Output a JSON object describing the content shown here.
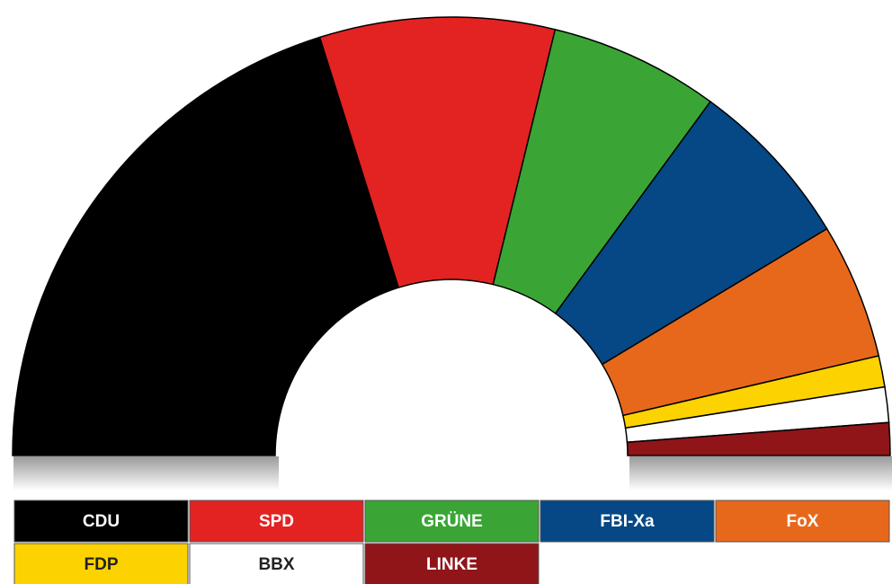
{
  "chart_data": {
    "type": "pie",
    "series": [
      {
        "name": "CDU",
        "color": "#000000",
        "values": [
          40.3
        ]
      },
      {
        "name": "SPD",
        "color": "#e32222",
        "values": [
          17.3
        ]
      },
      {
        "name": "GRÜNE",
        "color": "#3aa535",
        "values": [
          12.5
        ]
      },
      {
        "name": "FBI-Xa",
        "color": "#054885",
        "values": [
          12.6
        ]
      },
      {
        "name": "FoX",
        "color": "#e8681b",
        "values": [
          10
        ]
      },
      {
        "name": "FDP",
        "color": "#fcd200",
        "values": [
          2.3
        ]
      },
      {
        "name": "BBX",
        "color": "#ffffff",
        "values": [
          2.6
        ]
      },
      {
        "name": "LINKE",
        "color": "#8f1519",
        "values": [
          2.4
        ]
      }
    ]
  }
}
